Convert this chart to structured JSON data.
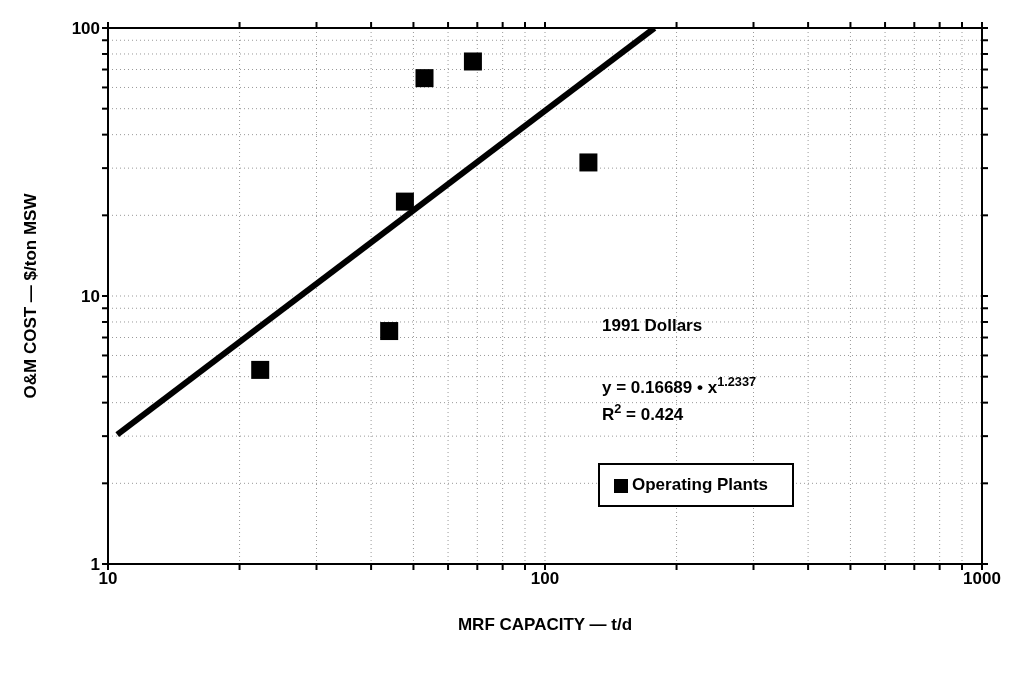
{
  "chart_data": {
    "type": "scatter",
    "xlabel": "MRF  CAPACITY  —  t/d",
    "ylabel": "O&M COST  —  $/ton MSW",
    "series": [
      {
        "name": "Operating Plants",
        "marker": "square",
        "color": "#000000",
        "x": [
          22.3,
          44.0,
          47.8,
          53.0,
          68.4,
          125.7
        ],
        "values": [
          5.3,
          7.4,
          22.5,
          65,
          75,
          31.5
        ]
      },
      {
        "type": "line",
        "marker": "none",
        "color": "#000000",
        "x": [
          10.5,
          178
        ],
        "values": [
          3.04,
          100
        ]
      }
    ],
    "log": "xy",
    "xlim": [
      10,
      1000
    ],
    "ylim": [
      1,
      100
    ],
    "xticks": [
      10,
      {
        "value": 20,
        "label": null
      },
      {
        "value": 30,
        "label": null
      },
      {
        "value": 40,
        "label": null
      },
      {
        "value": 50,
        "label": null
      },
      {
        "value": 60,
        "label": null
      },
      {
        "value": 70,
        "label": null
      },
      {
        "value": 80,
        "label": null
      },
      {
        "value": 90,
        "label": null
      },
      100,
      {
        "value": 200,
        "label": null
      },
      {
        "value": 300,
        "label": null
      },
      {
        "value": 400,
        "label": null
      },
      {
        "value": 500,
        "label": null
      },
      {
        "value": 600,
        "label": null
      },
      {
        "value": 700,
        "label": null
      },
      {
        "value": 800,
        "label": null
      },
      {
        "value": 900,
        "label": null
      },
      1000
    ],
    "yticks": [
      1,
      {
        "value": 2,
        "label": null
      },
      {
        "value": 3,
        "label": null
      },
      {
        "value": 4,
        "label": null
      },
      {
        "value": 5,
        "label": null
      },
      {
        "value": 6,
        "label": null
      },
      {
        "value": 7,
        "label": null
      },
      {
        "value": 8,
        "label": null
      },
      {
        "value": 9,
        "label": null
      },
      10,
      {
        "value": 20,
        "label": null
      },
      {
        "value": 30,
        "label": null
      },
      {
        "value": 40,
        "label": null
      },
      {
        "value": 50,
        "label": null
      },
      {
        "value": 60,
        "label": null
      },
      {
        "value": 70,
        "label": null
      },
      {
        "value": 80,
        "label": null
      },
      {
        "value": 90,
        "label": null
      },
      100
    ],
    "grid": true,
    "legend": "bottom right",
    "annotations": [
      "1991 Dollars",
      "y = 0.16689 • x$^{1.2337}$",
      "R$^{2}$ = 0.424"
    ]
  }
}
